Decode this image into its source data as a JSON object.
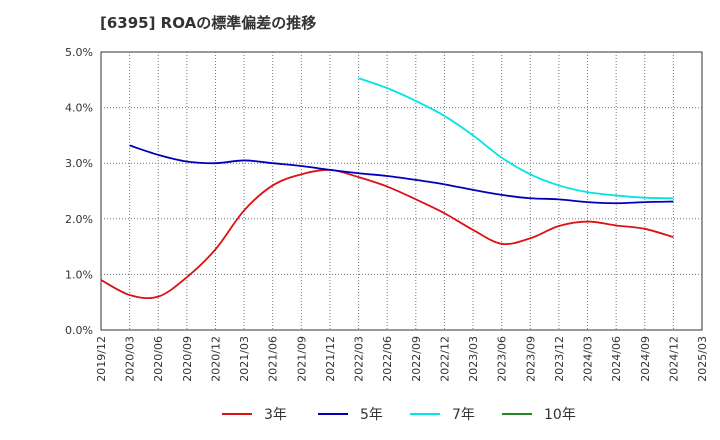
{
  "title": "[6395]  ROAの標準偏差の推移",
  "chart_data": {
    "type": "line",
    "title": "[6395]  ROAの標準偏差の推移",
    "x": [
      "2019/12",
      "2020/03",
      "2020/06",
      "2020/09",
      "2020/12",
      "2021/03",
      "2021/06",
      "2021/09",
      "2021/12",
      "2022/03",
      "2022/06",
      "2022/09",
      "2022/12",
      "2023/03",
      "2023/06",
      "2023/09",
      "2023/12",
      "2024/03",
      "2024/06",
      "2024/09",
      "2024/12",
      "2025/03"
    ],
    "yticks": [
      "0.0%",
      "1.0%",
      "2.0%",
      "3.0%",
      "4.0%",
      "5.0%"
    ],
    "ylim": [
      0,
      5
    ],
    "grid": true,
    "legend_position": "bottom",
    "series": [
      {
        "name": "3年",
        "color": "#dd1111",
        "values": [
          0.9,
          0.63,
          0.6,
          0.95,
          1.45,
          2.15,
          2.6,
          2.8,
          2.88,
          2.75,
          2.58,
          2.35,
          2.1,
          1.8,
          1.55,
          1.65,
          1.87,
          1.95,
          1.88,
          1.82,
          1.67,
          null
        ]
      },
      {
        "name": "5年",
        "color": "#0000bb",
        "values": [
          null,
          3.32,
          3.15,
          3.03,
          3.0,
          3.05,
          3.0,
          2.95,
          2.88,
          2.82,
          2.77,
          2.7,
          2.62,
          2.52,
          2.43,
          2.37,
          2.35,
          2.3,
          2.28,
          2.3,
          2.31,
          null
        ]
      },
      {
        "name": "7年",
        "color": "#00e5e5",
        "values": [
          null,
          null,
          null,
          null,
          null,
          null,
          null,
          null,
          null,
          4.53,
          4.35,
          4.12,
          3.85,
          3.5,
          3.1,
          2.8,
          2.6,
          2.48,
          2.42,
          2.38,
          2.37,
          null
        ]
      },
      {
        "name": "10年",
        "color": "#228822",
        "values": [
          null,
          null,
          null,
          null,
          null,
          null,
          null,
          null,
          null,
          null,
          null,
          null,
          null,
          null,
          null,
          null,
          null,
          null,
          null,
          null,
          null,
          null
        ]
      }
    ]
  }
}
